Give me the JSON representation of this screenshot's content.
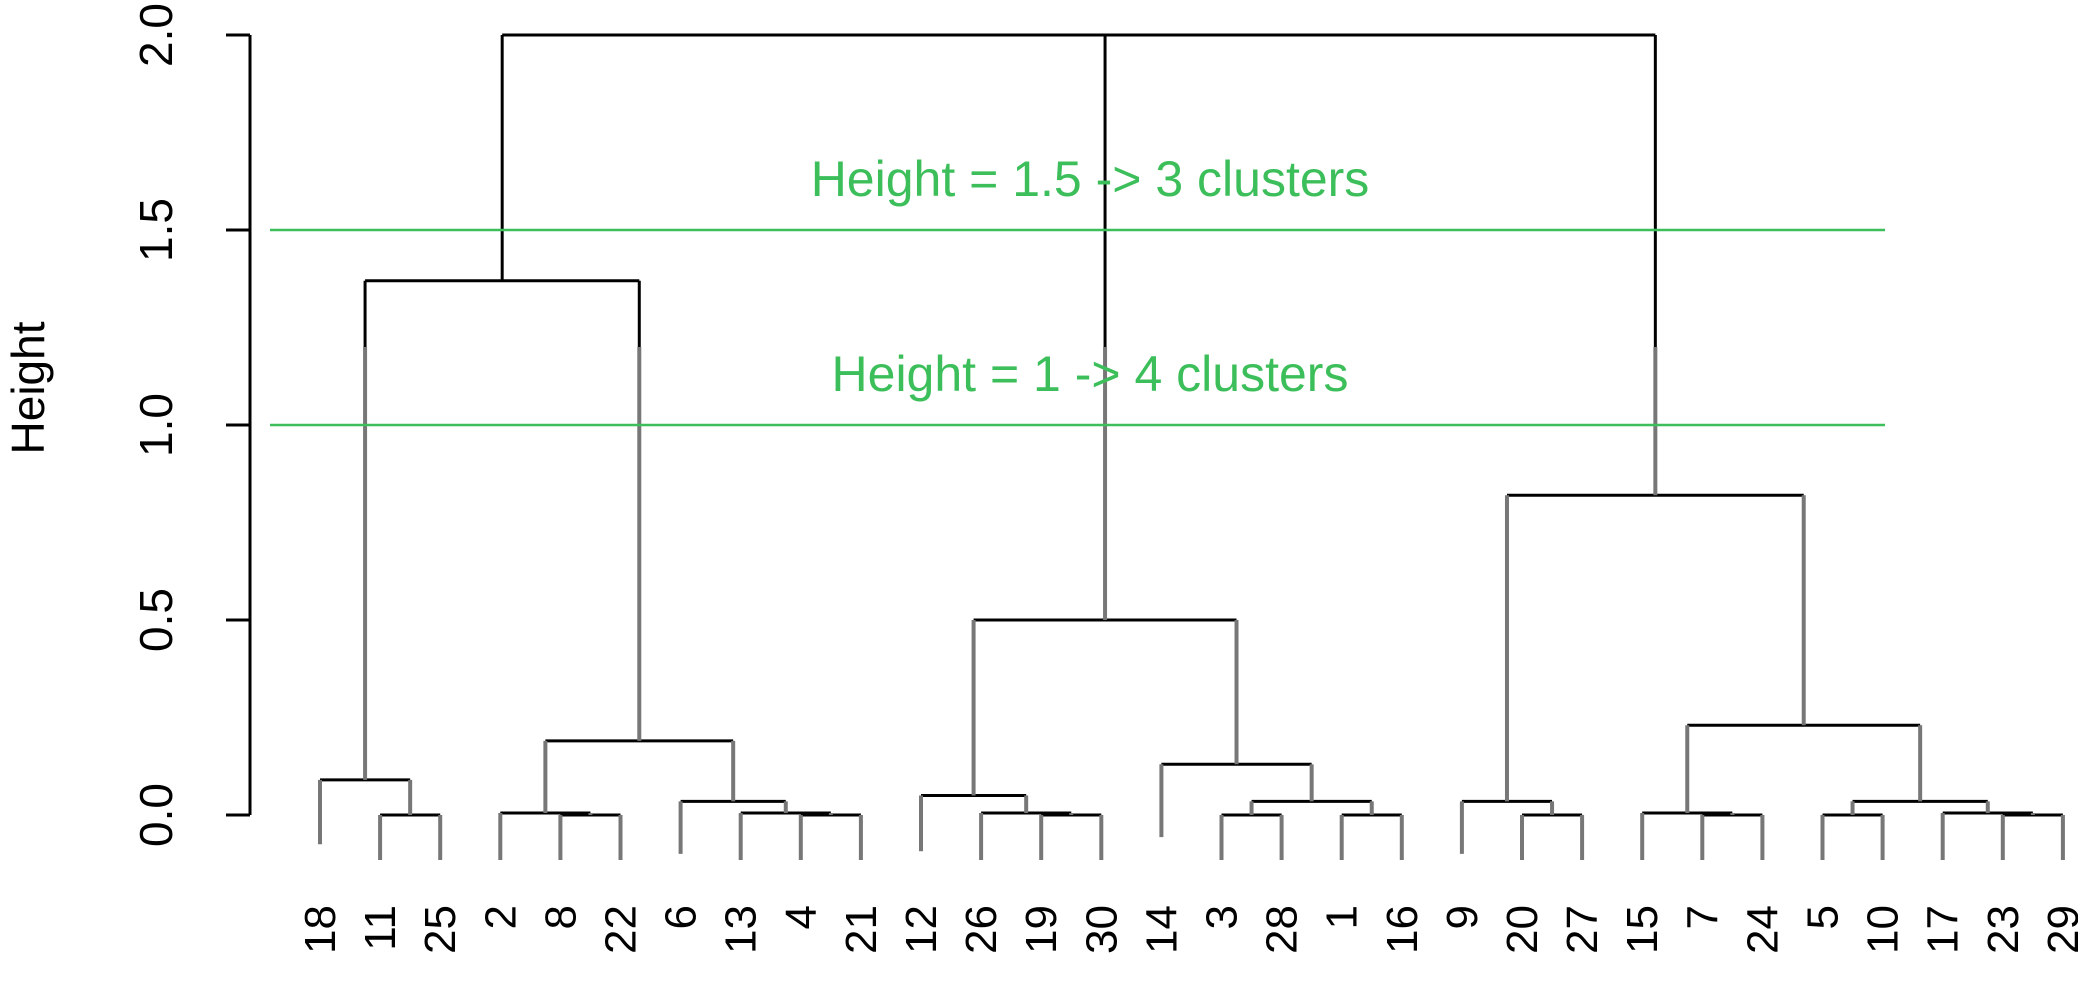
{
  "chart_data": {
    "type": "dendrogram",
    "ylabel": "Height",
    "ylim": [
      0,
      2
    ],
    "y_ticks": [
      "0.0",
      "0.5",
      "1.0",
      "1.5",
      "2.0"
    ],
    "leaf_order": [
      "18",
      "11",
      "25",
      "2",
      "8",
      "22",
      "6",
      "13",
      "4",
      "21",
      "12",
      "26",
      "19",
      "30",
      "14",
      "3",
      "28",
      "1",
      "16",
      "9",
      "20",
      "27",
      "15",
      "7",
      "24",
      "5",
      "10",
      "17",
      "23",
      "29"
    ],
    "merges": [
      {
        "id": "m1",
        "left": "11",
        "right": "25",
        "height": 0.0
      },
      {
        "id": "m2",
        "left": "18",
        "right": "m1",
        "height": 0.09
      },
      {
        "id": "m3",
        "left": "8",
        "right": "22",
        "height": 0.0
      },
      {
        "id": "m4",
        "left": "2",
        "right": "m3",
        "height": 0.005
      },
      {
        "id": "m5",
        "left": "4",
        "right": "21",
        "height": 0.0
      },
      {
        "id": "m6",
        "left": "13",
        "right": "m5",
        "height": 0.005
      },
      {
        "id": "m7",
        "left": "6",
        "right": "m6",
        "height": 0.035
      },
      {
        "id": "m8",
        "left": "m4",
        "right": "m7",
        "height": 0.19
      },
      {
        "id": "m9",
        "left": "m2",
        "right": "m8",
        "height": 1.37
      },
      {
        "id": "m10",
        "left": "19",
        "right": "30",
        "height": 0.0
      },
      {
        "id": "m11",
        "left": "26",
        "right": "m10",
        "height": 0.005
      },
      {
        "id": "m12",
        "left": "12",
        "right": "m11",
        "height": 0.05
      },
      {
        "id": "m13",
        "left": "3",
        "right": "28",
        "height": 0.0
      },
      {
        "id": "m14",
        "left": "1",
        "right": "16",
        "height": 0.0
      },
      {
        "id": "m15",
        "left": "m13",
        "right": "m14",
        "height": 0.035
      },
      {
        "id": "m16",
        "left": "14",
        "right": "m15",
        "height": 0.13
      },
      {
        "id": "m17",
        "left": "m12",
        "right": "m16",
        "height": 0.5
      },
      {
        "id": "m18",
        "left": "20",
        "right": "27",
        "height": 0.0
      },
      {
        "id": "m19",
        "left": "9",
        "right": "m18",
        "height": 0.035
      },
      {
        "id": "m20",
        "left": "7",
        "right": "24",
        "height": 0.0
      },
      {
        "id": "m21",
        "left": "15",
        "right": "m20",
        "height": 0.005
      },
      {
        "id": "m22",
        "left": "5",
        "right": "10",
        "height": 0.0
      },
      {
        "id": "m23",
        "left": "23",
        "right": "29",
        "height": 0.0
      },
      {
        "id": "m24",
        "left": "17",
        "right": "m23",
        "height": 0.005
      },
      {
        "id": "m25",
        "left": "m22",
        "right": "m24",
        "height": 0.035
      },
      {
        "id": "m26",
        "left": "m21",
        "right": "m25",
        "height": 0.23
      },
      {
        "id": "m27",
        "left": "m19",
        "right": "m26",
        "height": 0.82
      },
      {
        "id": "m28",
        "left": "m9",
        "right": "m17",
        "height": 2.0
      },
      {
        "id": "m29",
        "left": "m28",
        "right": "m27",
        "height": 2.0
      }
    ],
    "cut_lines": [
      {
        "height": 1.5,
        "label": "Height = 1.5 -> 3 clusters"
      },
      {
        "height": 1.0,
        "label": "Height = 1 -> 4 clusters"
      }
    ],
    "colors": {
      "cut_line": "#3cbf5a",
      "branch_upper": "#000000",
      "branch_lower": "#777777"
    }
  }
}
